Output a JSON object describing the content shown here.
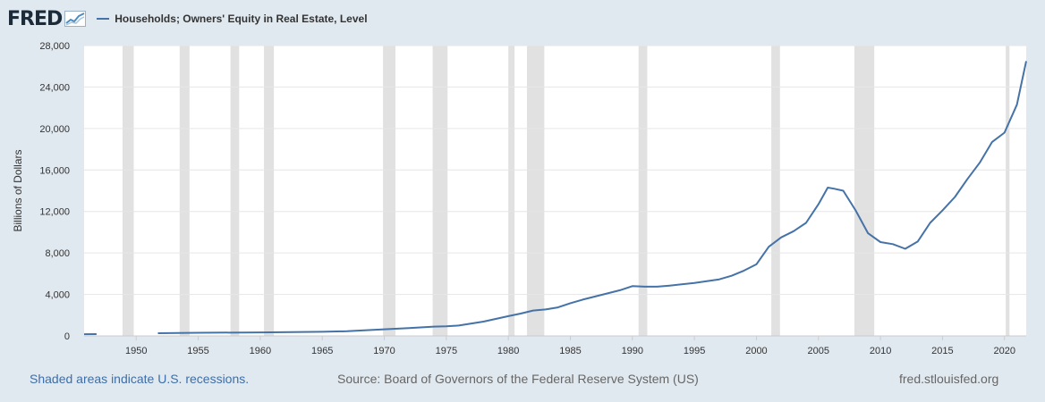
{
  "header": {
    "logo_text": "FRED",
    "logo_icon": "chart-trend-icon",
    "series_label": "Households; Owners' Equity in Real Estate, Level"
  },
  "footer": {
    "recession_note": "Shaded areas indicate U.S. recessions.",
    "source": "Source: Board of Governors of the Federal Reserve System (US)",
    "site": "fred.stlouisfed.org"
  },
  "colors": {
    "background": "#e1e9f0",
    "plot_background": "#ffffff",
    "line": "#4572a7",
    "recession": "#e1e1e1",
    "grid": "#e6e6e6",
    "note_link": "#3d6ea8"
  },
  "chart_data": {
    "type": "line",
    "title": "",
    "xlabel": "",
    "ylabel": "Billions of Dollars",
    "xlim": [
      1945.8,
      2021.75
    ],
    "ylim": [
      0,
      28000
    ],
    "grid": true,
    "legend": "top-left",
    "x_ticks": [
      1950,
      1955,
      1960,
      1965,
      1970,
      1975,
      1980,
      1985,
      1990,
      1995,
      2000,
      2005,
      2010,
      2015,
      2020
    ],
    "x_tick_labels": [
      "1950",
      "1955",
      "1960",
      "1965",
      "1970",
      "1975",
      "1980",
      "1985",
      "1990",
      "1995",
      "2000",
      "2005",
      "2010",
      "2015",
      "2020"
    ],
    "y_ticks": [
      0,
      4000,
      8000,
      12000,
      16000,
      20000,
      24000,
      28000
    ],
    "y_tick_labels": [
      "0",
      "4,000",
      "8,000",
      "12,000",
      "16,000",
      "20,000",
      "24,000",
      "28,000"
    ],
    "recessions": [
      [
        1948.9,
        1949.8
      ],
      [
        1953.5,
        1954.3
      ],
      [
        1957.6,
        1958.3
      ],
      [
        1960.3,
        1961.1
      ],
      [
        1969.9,
        1970.9
      ],
      [
        1973.9,
        1975.1
      ],
      [
        1980.0,
        1980.5
      ],
      [
        1981.5,
        1982.9
      ],
      [
        1990.5,
        1991.2
      ],
      [
        2001.2,
        2001.9
      ],
      [
        2007.9,
        2009.5
      ],
      [
        2020.1,
        2020.4
      ]
    ],
    "series": [
      {
        "name": "Households; Owners' Equity in Real Estate, Level",
        "segments": [
          {
            "x": [
              1945.8,
              1946.8
            ],
            "y": [
              160,
              170
            ]
          },
          {
            "x": [
              1951.75,
              1955,
              1960,
              1965,
              1967,
              1970,
              1972,
              1974,
              1975,
              1976,
              1978,
              1980,
              1981,
              1982,
              1983,
              1984,
              1985,
              1986,
              1988,
              1989,
              1990,
              1991,
              1992,
              1993,
              1995,
              1997,
              1998,
              1999,
              2000,
              2001,
              2002,
              2003,
              2004,
              2005,
              2005.75,
              2006.25,
              2007,
              2008,
              2009,
              2010,
              2011,
              2012,
              2013,
              2014,
              2015,
              2016,
              2017,
              2018,
              2019,
              2020,
              2021,
              2021.75
            ],
            "y": [
              260,
              300,
              340,
              400,
              450,
              640,
              760,
              900,
              920,
              1000,
              1380,
              1900,
              2150,
              2450,
              2550,
              2750,
              3150,
              3500,
              4100,
              4400,
              4800,
              4750,
              4750,
              4850,
              5100,
              5450,
              5800,
              6300,
              6900,
              8600,
              9500,
              10100,
              10900,
              12700,
              14300,
              14200,
              14000,
              12100,
              9900,
              9050,
              8850,
              8400,
              9100,
              10900,
              12100,
              13400,
              15100,
              16700,
              18700,
              19600,
              22300,
              26500
            ]
          }
        ]
      }
    ]
  }
}
